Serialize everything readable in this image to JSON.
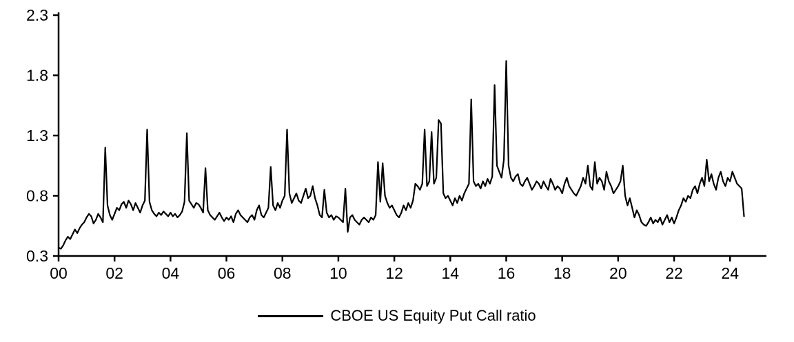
{
  "chart_data": {
    "type": "line",
    "title": "",
    "legend": {
      "label": "CBOE US Equity Put Call ratio",
      "position": "bottom-center",
      "swatch": "line"
    },
    "line_color": "#000000",
    "axis_color": "#000000",
    "grid": false,
    "x_axis": {
      "start_year": 2000,
      "step_years": 0.0833333,
      "interval": "monthly",
      "tick_values": [
        2000,
        2002,
        2004,
        2006,
        2008,
        2010,
        2012,
        2014,
        2016,
        2018,
        2020,
        2022,
        2024
      ],
      "tick_labels": [
        "00",
        "02",
        "04",
        "06",
        "08",
        "10",
        "12",
        "14",
        "16",
        "18",
        "20",
        "22",
        "24"
      ],
      "range": [
        2000,
        2025.3
      ]
    },
    "y_axis": {
      "tick_values": [
        0.3,
        0.8,
        1.3,
        1.8,
        2.3
      ],
      "tick_labels": [
        "0.3",
        "0.8",
        "1.3",
        "1.8",
        "2.3"
      ],
      "range": [
        0.3,
        2.3
      ]
    },
    "values": [
      0.37,
      0.36,
      0.39,
      0.43,
      0.46,
      0.44,
      0.48,
      0.52,
      0.49,
      0.53,
      0.56,
      0.58,
      0.62,
      0.65,
      0.63,
      0.57,
      0.6,
      0.65,
      0.62,
      0.58,
      1.2,
      0.72,
      0.64,
      0.6,
      0.65,
      0.7,
      0.68,
      0.73,
      0.75,
      0.7,
      0.76,
      0.73,
      0.68,
      0.74,
      0.7,
      0.66,
      0.72,
      0.76,
      1.35,
      0.75,
      0.68,
      0.65,
      0.63,
      0.66,
      0.64,
      0.67,
      0.65,
      0.63,
      0.66,
      0.63,
      0.65,
      0.62,
      0.64,
      0.67,
      0.75,
      1.32,
      0.76,
      0.73,
      0.7,
      0.74,
      0.73,
      0.7,
      0.66,
      1.03,
      0.68,
      0.64,
      0.62,
      0.6,
      0.63,
      0.66,
      0.62,
      0.59,
      0.62,
      0.6,
      0.63,
      0.58,
      0.65,
      0.68,
      0.64,
      0.62,
      0.6,
      0.58,
      0.62,
      0.64,
      0.6,
      0.68,
      0.72,
      0.64,
      0.62,
      0.66,
      0.7,
      1.04,
      0.72,
      0.68,
      0.74,
      0.7,
      0.76,
      0.8,
      1.35,
      0.82,
      0.74,
      0.78,
      0.82,
      0.76,
      0.74,
      0.8,
      0.86,
      0.78,
      0.8,
      0.88,
      0.78,
      0.72,
      0.64,
      0.62,
      0.85,
      0.66,
      0.62,
      0.64,
      0.6,
      0.63,
      0.62,
      0.6,
      0.58,
      0.86,
      0.5,
      0.62,
      0.64,
      0.6,
      0.58,
      0.56,
      0.6,
      0.62,
      0.6,
      0.58,
      0.62,
      0.6,
      0.64,
      1.08,
      0.75,
      1.07,
      0.8,
      0.74,
      0.7,
      0.72,
      0.68,
      0.64,
      0.62,
      0.66,
      0.72,
      0.68,
      0.74,
      0.7,
      0.76,
      0.9,
      0.88,
      0.85,
      0.9,
      1.35,
      0.88,
      0.92,
      1.33,
      0.9,
      0.95,
      1.43,
      1.4,
      0.82,
      0.78,
      0.8,
      0.76,
      0.72,
      0.78,
      0.74,
      0.8,
      0.76,
      0.82,
      0.86,
      0.9,
      1.6,
      0.92,
      0.88,
      0.9,
      0.86,
      0.92,
      0.88,
      0.94,
      0.9,
      0.96,
      1.72,
      1.05,
      1.0,
      0.95,
      1.1,
      1.92,
      1.05,
      0.95,
      0.92,
      0.96,
      0.98,
      0.9,
      0.88,
      0.92,
      0.95,
      0.9,
      0.85,
      0.88,
      0.92,
      0.9,
      0.86,
      0.92,
      0.88,
      0.85,
      0.94,
      0.9,
      0.85,
      0.88,
      0.86,
      0.82,
      0.9,
      0.95,
      0.88,
      0.85,
      0.82,
      0.8,
      0.84,
      0.88,
      0.95,
      0.9,
      1.05,
      0.88,
      0.85,
      1.08,
      0.9,
      0.95,
      0.92,
      0.85,
      1.0,
      0.92,
      0.88,
      0.82,
      0.85,
      0.88,
      0.92,
      1.05,
      0.8,
      0.72,
      0.78,
      0.7,
      0.62,
      0.68,
      0.64,
      0.58,
      0.56,
      0.55,
      0.58,
      0.62,
      0.57,
      0.6,
      0.58,
      0.62,
      0.56,
      0.6,
      0.64,
      0.58,
      0.62,
      0.57,
      0.62,
      0.68,
      0.72,
      0.78,
      0.75,
      0.8,
      0.78,
      0.85,
      0.88,
      0.82,
      0.9,
      0.95,
      0.88,
      1.1,
      0.92,
      0.98,
      0.9,
      0.85,
      0.95,
      1.0,
      0.92,
      0.88,
      0.95,
      0.92,
      1.0,
      0.95,
      0.9,
      0.88,
      0.86,
      0.63
    ]
  }
}
